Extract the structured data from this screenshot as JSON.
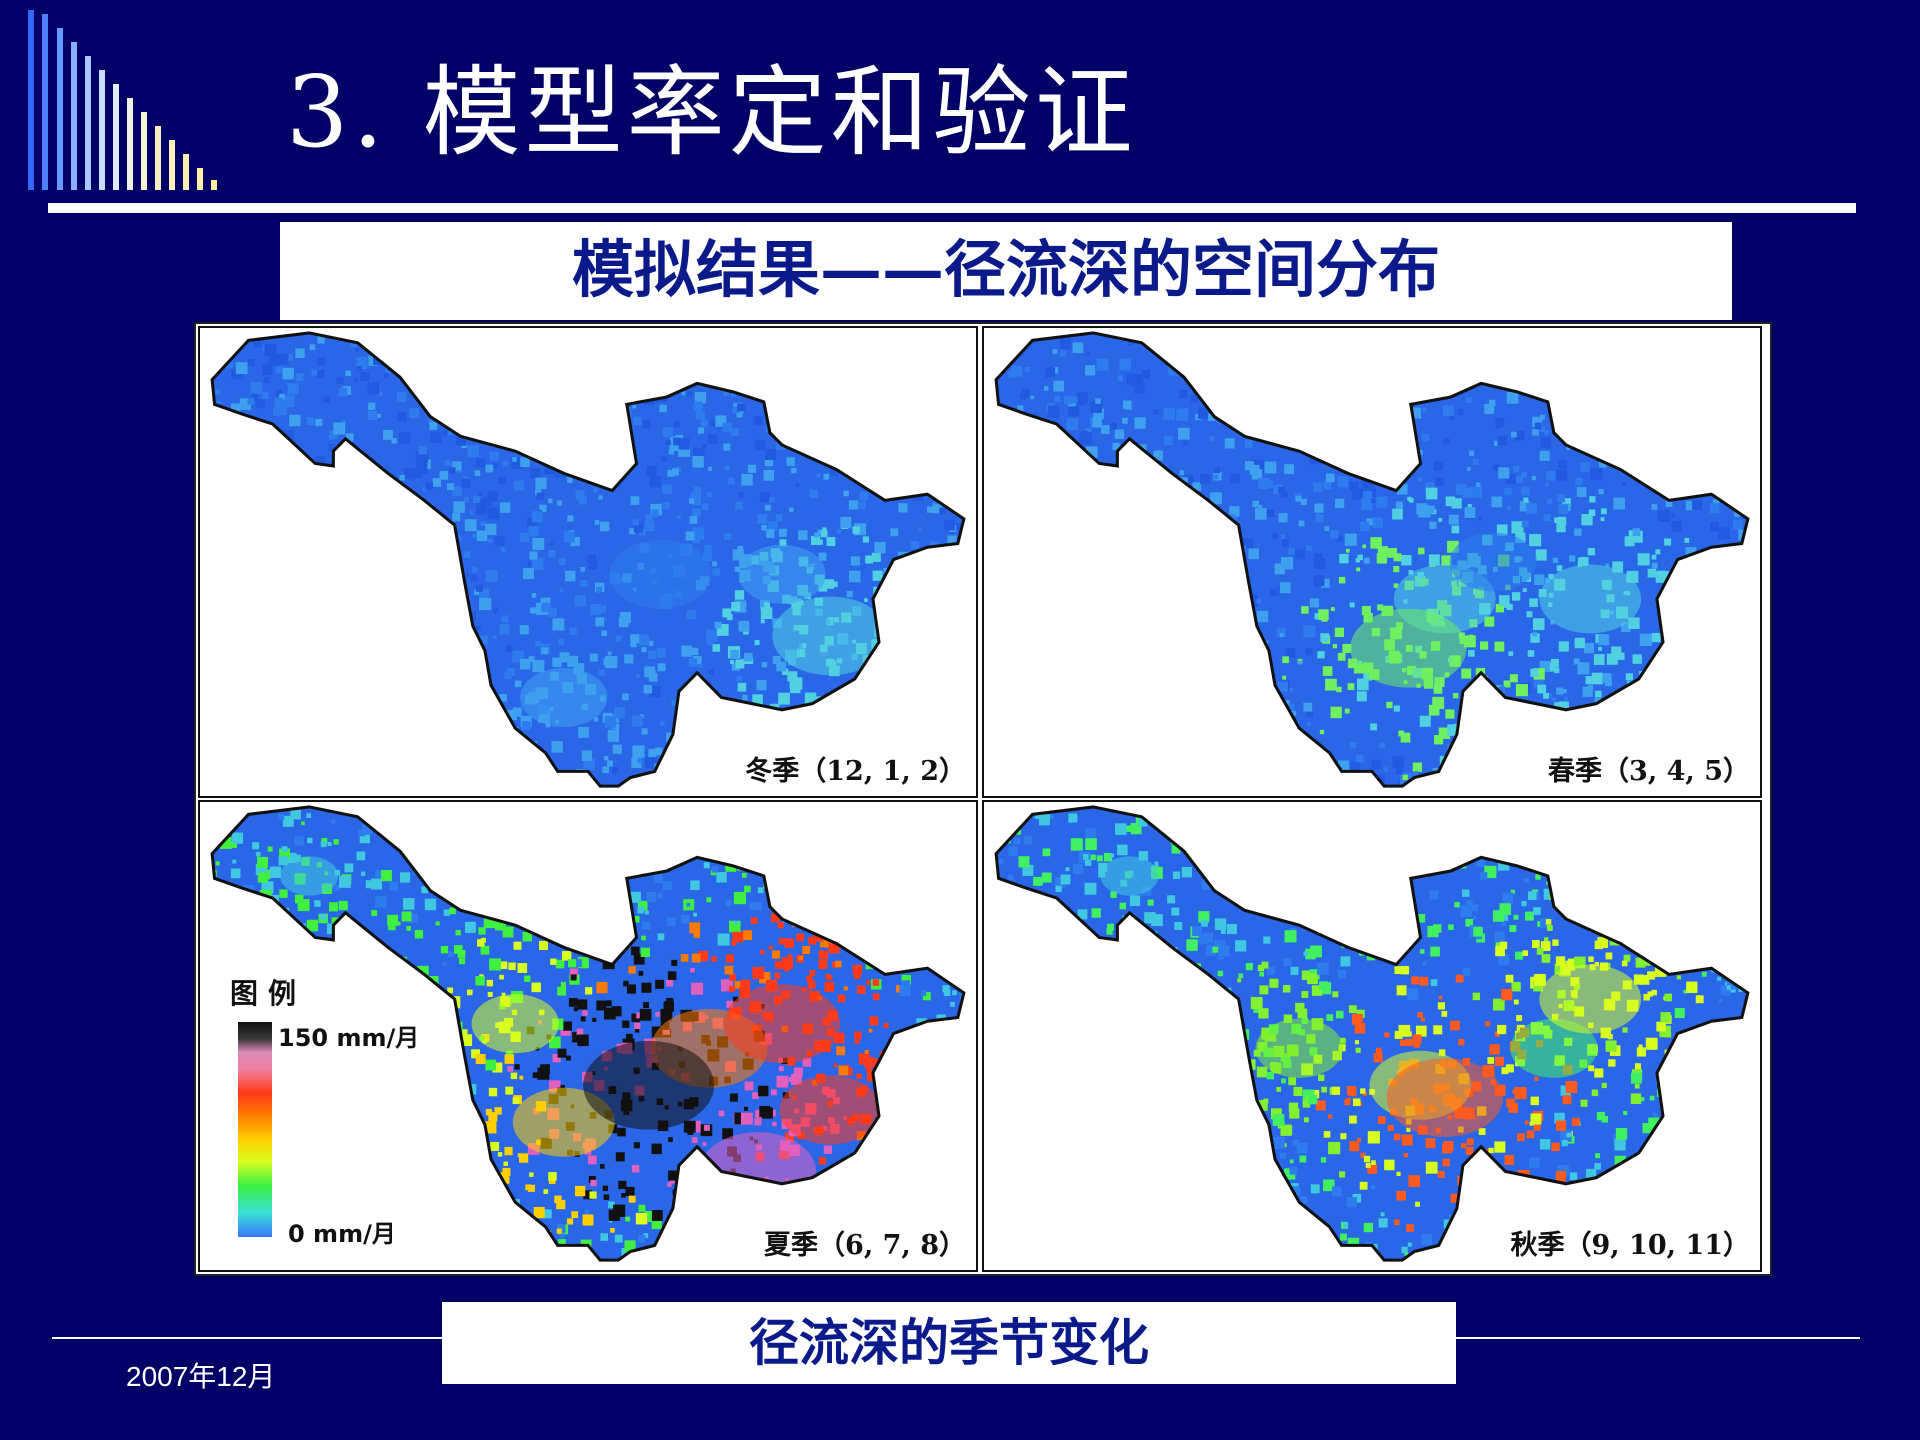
{
  "slide": {
    "title": "3.  模型率定和验证",
    "subtitle": "模拟结果——径流深的空间分布",
    "caption": "径流深的季节变化",
    "footer_date": "2007年12月"
  },
  "maps": [
    {
      "season_label": "冬季（12, 1, 2）",
      "palette": [
        "#1f5ae0",
        "#2f7bf0",
        "#3fa0f0",
        "#50d0e0",
        "#60e080"
      ]
    },
    {
      "season_label": "春季（3, 4, 5）",
      "palette": [
        "#1f5ae0",
        "#2f7bf0",
        "#3fa0f0",
        "#50d0e0",
        "#70f060",
        "#e0f030"
      ]
    },
    {
      "season_label": "夏季（6, 7, 8）",
      "palette": [
        "#2f7bf0",
        "#40c8e0",
        "#40f040",
        "#d8ff20",
        "#ffd000",
        "#ff7a00",
        "#ff3a1a",
        "#e060c0",
        "#111111"
      ]
    },
    {
      "season_label": "秋季（9, 10, 11）",
      "palette": [
        "#2f7bf0",
        "#40c8e0",
        "#40f060",
        "#80f030",
        "#d8ff20",
        "#ff5a20"
      ]
    }
  ],
  "legend": {
    "title": "图例",
    "max_label": "150 mm/月",
    "min_label": "0 mm/月",
    "colors": {
      "max": "#111111",
      "min": "#3a78ff"
    }
  },
  "colors": {
    "background": "#000066",
    "title_text": "#ffffff",
    "subtitle_text": "#0a1a8a"
  }
}
